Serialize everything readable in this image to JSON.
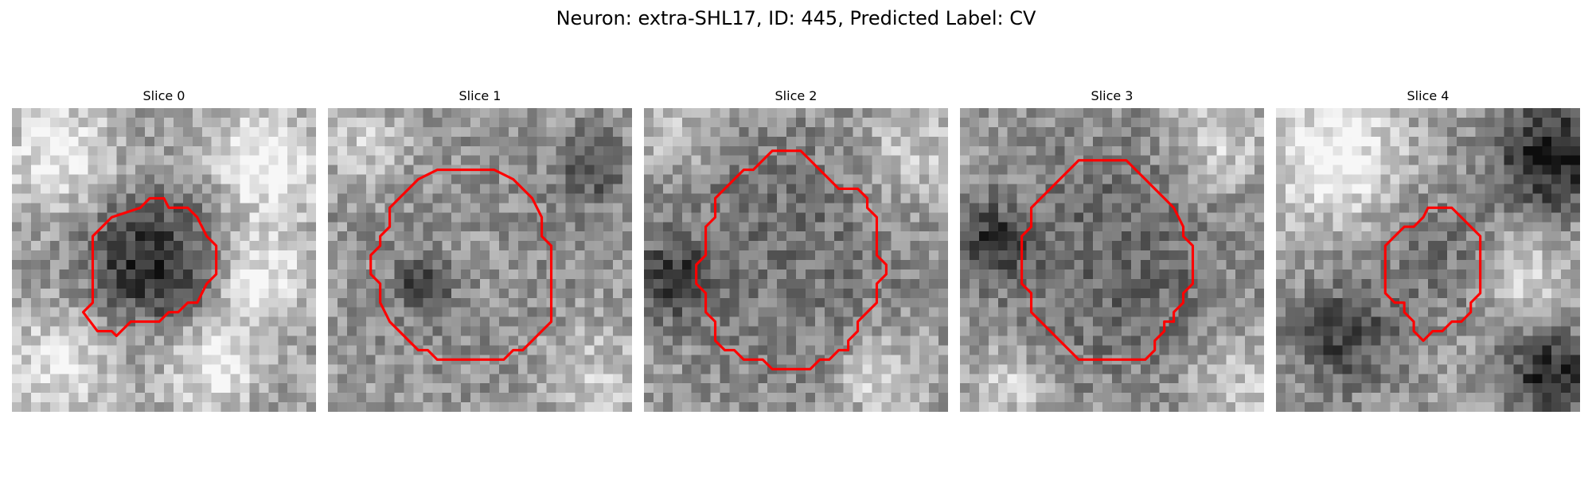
{
  "figure": {
    "title": "Neuron: extra-SHL17, ID: 445, Predicted Label: CV",
    "outline_color": "#ff0000",
    "colormap": "gray"
  },
  "slices": [
    {
      "label": "Slice 0",
      "outline": [
        [
          16.5,
          10.5
        ],
        [
          18.5,
          10.5
        ],
        [
          19.5,
          11.5
        ],
        [
          20.5,
          13.5
        ],
        [
          21.5,
          14.5
        ],
        [
          21.5,
          17.5
        ],
        [
          20.5,
          18.5
        ],
        [
          19.5,
          20.5
        ],
        [
          18.5,
          20.5
        ],
        [
          17.5,
          21.5
        ],
        [
          16.5,
          21.5
        ],
        [
          15.5,
          22.5
        ],
        [
          12.5,
          22.5
        ],
        [
          11.5,
          23.5
        ],
        [
          11.0,
          24.0
        ],
        [
          10.5,
          23.5
        ],
        [
          9.0,
          23.5
        ],
        [
          7.5,
          21.5
        ],
        [
          8.5,
          20.5
        ],
        [
          8.5,
          13.5
        ],
        [
          9.5,
          12.5
        ],
        [
          10.5,
          11.5
        ],
        [
          13.5,
          10.5
        ],
        [
          14.5,
          9.5
        ],
        [
          16.0,
          9.5
        ]
      ]
    },
    {
      "label": "Slice 1",
      "outline": [
        [
          11.5,
          6.5
        ],
        [
          17.5,
          6.5
        ],
        [
          19.5,
          7.5
        ],
        [
          20.5,
          8.5
        ],
        [
          21.5,
          9.5
        ],
        [
          22.5,
          11.5
        ],
        [
          22.5,
          13.5
        ],
        [
          23.5,
          14.5
        ],
        [
          23.5,
          22.5
        ],
        [
          22.5,
          23.5
        ],
        [
          21.5,
          24.5
        ],
        [
          20.5,
          25.5
        ],
        [
          19.5,
          25.5
        ],
        [
          18.5,
          26.5
        ],
        [
          11.5,
          26.5
        ],
        [
          10.5,
          25.5
        ],
        [
          9.5,
          25.5
        ],
        [
          8.5,
          24.5
        ],
        [
          7.5,
          23.5
        ],
        [
          6.5,
          22.5
        ],
        [
          5.5,
          20.5
        ],
        [
          5.5,
          18.5
        ],
        [
          4.5,
          17.5
        ],
        [
          4.5,
          15.5
        ],
        [
          5.5,
          14.5
        ],
        [
          5.5,
          13.5
        ],
        [
          6.5,
          12.5
        ],
        [
          6.5,
          10.5
        ],
        [
          7.5,
          9.5
        ],
        [
          8.5,
          8.5
        ],
        [
          9.5,
          7.5
        ],
        [
          10.5,
          7.0
        ]
      ]
    },
    {
      "label": "Slice 2",
      "outline": [
        [
          14.5,
          4.5
        ],
        [
          16.5,
          4.5
        ],
        [
          17.5,
          5.5
        ],
        [
          18.5,
          6.5
        ],
        [
          19.5,
          7.5
        ],
        [
          20.5,
          8.5
        ],
        [
          22.5,
          8.5
        ],
        [
          23.5,
          9.5
        ],
        [
          23.5,
          10.5
        ],
        [
          24.5,
          11.5
        ],
        [
          24.5,
          15.5
        ],
        [
          25.5,
          16.5
        ],
        [
          25.5,
          17.5
        ],
        [
          24.5,
          18.5
        ],
        [
          24.5,
          20.5
        ],
        [
          23.5,
          21.5
        ],
        [
          22.5,
          22.5
        ],
        [
          22.5,
          23.5
        ],
        [
          21.5,
          24.5
        ],
        [
          21.5,
          25.5
        ],
        [
          20.5,
          25.5
        ],
        [
          19.5,
          26.5
        ],
        [
          18.5,
          26.5
        ],
        [
          17.5,
          27.5
        ],
        [
          13.5,
          27.5
        ],
        [
          12.5,
          26.5
        ],
        [
          10.5,
          26.5
        ],
        [
          9.5,
          25.5
        ],
        [
          8.5,
          25.5
        ],
        [
          7.5,
          24.5
        ],
        [
          7.5,
          22.5
        ],
        [
          6.5,
          21.5
        ],
        [
          6.5,
          19.5
        ],
        [
          5.5,
          18.5
        ],
        [
          5.5,
          16.5
        ],
        [
          6.5,
          15.5
        ],
        [
          6.5,
          12.5
        ],
        [
          7.5,
          11.5
        ],
        [
          7.5,
          9.5
        ],
        [
          8.5,
          8.5
        ],
        [
          9.5,
          7.5
        ],
        [
          10.5,
          6.5
        ],
        [
          11.5,
          6.5
        ],
        [
          12.5,
          5.5
        ],
        [
          13.5,
          4.5
        ]
      ]
    },
    {
      "label": "Slice 3",
      "outline": [
        [
          13.5,
          5.5
        ],
        [
          17.5,
          5.5
        ],
        [
          18.5,
          6.5
        ],
        [
          19.5,
          7.5
        ],
        [
          20.5,
          8.5
        ],
        [
          21.5,
          9.5
        ],
        [
          22.5,
          10.5
        ],
        [
          23.5,
          12.5
        ],
        [
          23.5,
          13.5
        ],
        [
          24.5,
          14.5
        ],
        [
          24.5,
          18.5
        ],
        [
          23.5,
          19.5
        ],
        [
          23.5,
          20.5
        ],
        [
          22.5,
          21.5
        ],
        [
          22.5,
          22.5
        ],
        [
          21.5,
          22.5
        ],
        [
          21.5,
          23.5
        ],
        [
          20.5,
          24.5
        ],
        [
          20.5,
          25.5
        ],
        [
          19.5,
          26.5
        ],
        [
          12.5,
          26.5
        ],
        [
          11.5,
          25.5
        ],
        [
          10.5,
          24.5
        ],
        [
          9.5,
          23.5
        ],
        [
          8.5,
          22.5
        ],
        [
          7.5,
          21.5
        ],
        [
          7.5,
          19.5
        ],
        [
          6.5,
          18.5
        ],
        [
          6.5,
          13.5
        ],
        [
          7.5,
          12.5
        ],
        [
          7.5,
          10.5
        ],
        [
          8.5,
          9.5
        ],
        [
          9.5,
          8.5
        ],
        [
          10.5,
          7.5
        ],
        [
          11.5,
          6.5
        ],
        [
          12.5,
          5.5
        ]
      ]
    },
    {
      "label": "Slice 4",
      "outline": [
        [
          16.5,
          10.5
        ],
        [
          18.5,
          10.5
        ],
        [
          19.5,
          11.5
        ],
        [
          20.5,
          12.5
        ],
        [
          21.5,
          13.5
        ],
        [
          21.5,
          19.5
        ],
        [
          20.5,
          20.5
        ],
        [
          20.5,
          21.5
        ],
        [
          19.5,
          22.5
        ],
        [
          18.5,
          22.5
        ],
        [
          17.5,
          23.5
        ],
        [
          16.5,
          23.5
        ],
        [
          15.5,
          24.5
        ],
        [
          14.5,
          23.5
        ],
        [
          14.5,
          22.5
        ],
        [
          13.5,
          21.5
        ],
        [
          13.5,
          20.5
        ],
        [
          12.5,
          20.5
        ],
        [
          11.5,
          19.5
        ],
        [
          11.5,
          14.5
        ],
        [
          12.5,
          13.5
        ],
        [
          13.5,
          12.5
        ],
        [
          14.5,
          12.5
        ],
        [
          15.5,
          11.5
        ],
        [
          16.0,
          10.5
        ]
      ]
    }
  ]
}
